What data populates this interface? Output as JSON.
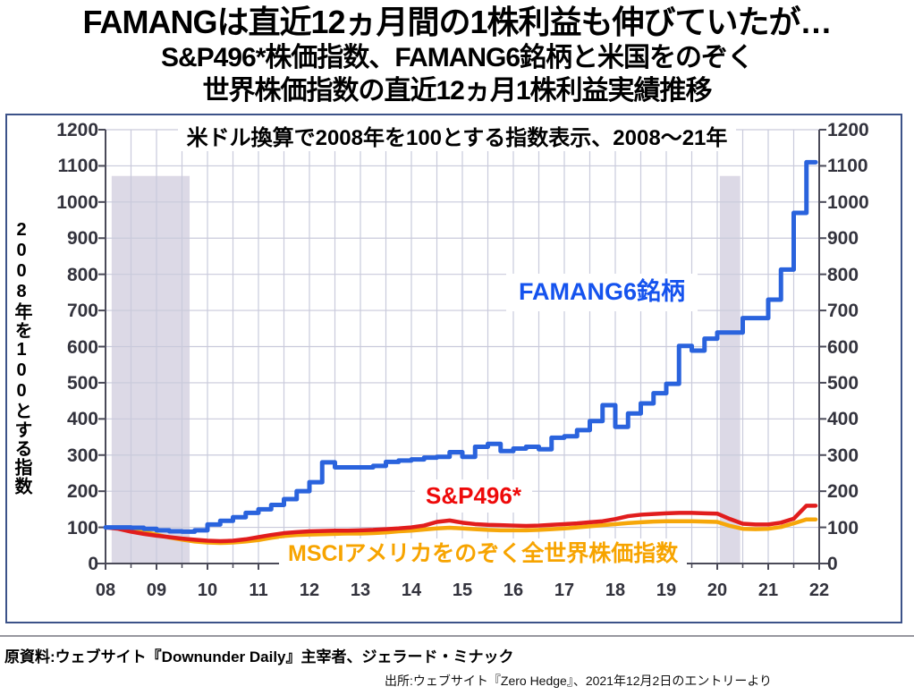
{
  "title": {
    "line1": "FAMANGは直近12ヵ月間の1株利益も伸びていたが…",
    "line2": "S&P496*株価指数、FAMANG6銘柄と米国をのぞく",
    "line3": "世界株価指数の直近12ヵ月1株利益実績推移"
  },
  "footer": {
    "source_primary": "原資料:ウェブサイト『Downunder Daily』主宰者、ジェラード・ミナック",
    "source_secondary": "出所:ウェブサイト『Zero Hedge』、2021年12月2日のエントリーより"
  },
  "colors": {
    "famang_line": "#2a63dd",
    "sp496_line": "#e11d1d",
    "msci_line": "#f6a70a",
    "famang_label": "#1553ee",
    "sp496_label": "#ee0a0a",
    "msci_label": "#f7a400",
    "grid": "#c9cadb",
    "axis": "#4a4a58",
    "recession_band": "#dcd9e6",
    "frame_border": "#3c5289",
    "tick_text": "#33333d"
  },
  "chart_data": {
    "type": "line",
    "title": "米ドル換算で2008年を100とする指数表示、2008〜21年",
    "y_axis_label": "2008年を100とする指数",
    "x_start": 2008,
    "x_step": 0.25,
    "x_tick_labels": [
      "08",
      "09",
      "10",
      "11",
      "12",
      "13",
      "14",
      "15",
      "16",
      "17",
      "18",
      "19",
      "20",
      "21",
      "22"
    ],
    "ylim": [
      0,
      1200
    ],
    "y_tick_step": 100,
    "grid": "on",
    "vertical_grid_interval_years": 0.5,
    "recession_bands": [
      {
        "from": 2008.12,
        "to": 2009.65
      },
      {
        "from": 2020.05,
        "to": 2020.45
      }
    ],
    "series": [
      {
        "name": "FAMANG6銘柄",
        "color": "#2a63dd",
        "style": "step",
        "stroke_width": 5,
        "values": [
          100,
          100,
          99,
          96,
          92,
          89,
          88,
          92,
          108,
          118,
          128,
          140,
          150,
          162,
          178,
          200,
          225,
          280,
          266,
          266,
          266,
          270,
          281,
          285,
          288,
          293,
          295,
          308,
          295,
          323,
          331,
          311,
          318,
          323,
          316,
          348,
          352,
          369,
          394,
          438,
          378,
          415,
          443,
          471,
          497,
          602,
          589,
          622,
          639,
          639,
          679,
          679,
          730,
          813,
          970,
          1110
        ]
      },
      {
        "name": "S&P496*",
        "color": "#e11d1d",
        "style": "line",
        "stroke_width": 4.5,
        "values": [
          100,
          96,
          88,
          82,
          77,
          73,
          69,
          66,
          63,
          62,
          63,
          67,
          73,
          79,
          84,
          87,
          89,
          90,
          91,
          91,
          92,
          93,
          95,
          97,
          100,
          105,
          115,
          119,
          113,
          109,
          107,
          106,
          105,
          104,
          105,
          107,
          109,
          111,
          114,
          117,
          123,
          131,
          135,
          137,
          139,
          140,
          140,
          139,
          138,
          123,
          110,
          108,
          108,
          113,
          124,
          160
        ]
      },
      {
        "name": "MSCIアメリカをのぞく全世界株価指数",
        "color": "#f6a70a",
        "style": "line",
        "stroke_width": 4.5,
        "values": [
          100,
          99,
          95,
          88,
          80,
          72,
          66,
          61,
          58,
          57,
          58,
          61,
          65,
          71,
          76,
          79,
          80,
          81,
          82,
          83,
          83,
          84,
          86,
          89,
          91,
          94,
          97,
          99,
          97,
          95,
          93,
          92,
          92,
          92,
          93,
          95,
          97,
          100,
          103,
          106,
          109,
          112,
          114,
          116,
          117,
          117,
          117,
          116,
          115,
          104,
          96,
          95,
          96,
          101,
          111,
          122
        ]
      }
    ]
  }
}
